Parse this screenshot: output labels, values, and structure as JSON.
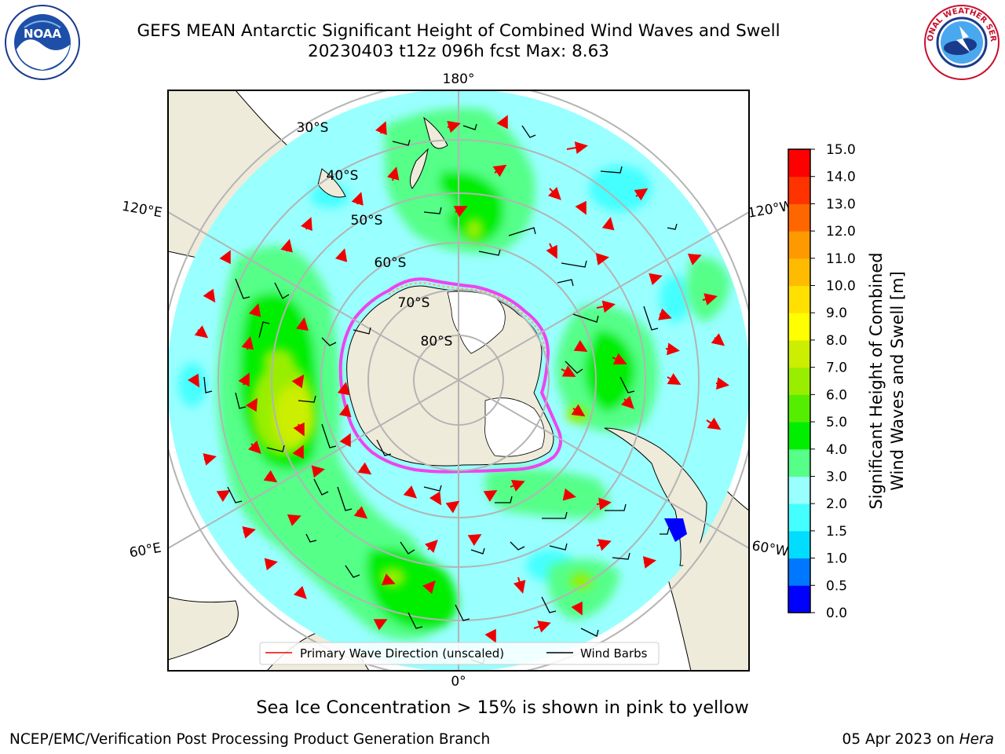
{
  "header": {
    "title": "GEFS MEAN Antarctic Significant Height of Combined Wind Waves and Swell",
    "subtitle": "20230403 t12z 096h fcst   Max: 8.63"
  },
  "logos": {
    "left": {
      "name": "NOAA",
      "text": "NOAA"
    },
    "right": {
      "name": "NATIONAL WEATHER SERVICE"
    }
  },
  "map": {
    "projection": "south-polar-stereographic",
    "lon_labels": {
      "top": "180°",
      "left_upper": "120°E",
      "right_upper": "120°W",
      "left_lower": "60°E",
      "right_lower": "60°W",
      "bottom": "0°"
    },
    "lat_labels": [
      "30°S",
      "40°S",
      "50°S",
      "60°S",
      "70°S",
      "80°S"
    ],
    "legend": {
      "wave_direction": "Primary Wave Direction (unscaled)",
      "wind_barbs": "Wind Barbs"
    },
    "colors": {
      "ocean_base": "#99ffff",
      "land": "#efebda",
      "ice_edge": "#ee44ee",
      "arrow": "#ee0000"
    }
  },
  "chart_data": {
    "type": "heatmap",
    "field": "Significant Height of Combined Wind Waves and Swell [m]",
    "max_value": 8.63,
    "colorbar": {
      "label_line1": "Significant Height of Combined",
      "label_line2": "Wind Waves and Swell [m]",
      "ticks": [
        "0.0",
        "0.5",
        "1.0",
        "1.5",
        "2.0",
        "3.0",
        "4.0",
        "5.0",
        "6.0",
        "7.0",
        "8.0",
        "9.0",
        "10.0",
        "11.0",
        "12.0",
        "13.0",
        "14.0",
        "15.0"
      ],
      "colors": [
        "#0000ff",
        "#0077ff",
        "#00ddff",
        "#44ffff",
        "#99ffff",
        "#55ff88",
        "#00ee00",
        "#55ee00",
        "#99ee00",
        "#ccee00",
        "#ffff00",
        "#ffe000",
        "#ffbb00",
        "#ff9900",
        "#ff6600",
        "#ff3300",
        "#ff0000"
      ]
    }
  },
  "notes": {
    "sea_ice": "Sea Ice Concentration > 15% is shown in pink to yellow"
  },
  "footer": {
    "left": "NCEP/EMC/Verification Post Processing Product Generation Branch",
    "date": "05 Apr 2023 on ",
    "system": "Hera"
  }
}
